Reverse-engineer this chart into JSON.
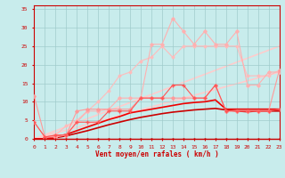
{
  "xlabel": "Vent moyen/en rafales ( km/h )",
  "ylabel": "",
  "xlim": [
    0,
    23
  ],
  "ylim": [
    0,
    36
  ],
  "yticks": [
    0,
    5,
    10,
    15,
    20,
    25,
    30,
    35
  ],
  "xticks": [
    0,
    1,
    2,
    3,
    4,
    5,
    6,
    7,
    8,
    9,
    10,
    11,
    12,
    13,
    14,
    15,
    16,
    17,
    18,
    19,
    20,
    21,
    22,
    23
  ],
  "bg_color": "#c8ecec",
  "grid_color": "#a0cccc",
  "lines": [
    {
      "x": [
        0,
        1,
        2,
        3,
        4,
        5,
        6,
        7,
        8,
        9,
        10,
        11,
        12,
        13,
        14,
        15,
        16,
        17,
        18,
        19,
        20,
        21,
        22,
        23
      ],
      "y": [
        4.5,
        0.5,
        0.5,
        1,
        4.5,
        7.5,
        7.5,
        8,
        11,
        11,
        11,
        25.5,
        25.5,
        32.5,
        29,
        25.5,
        29,
        25.5,
        25.5,
        29,
        14.5,
        14.5,
        18,
        18
      ],
      "color": "#ffb0b0",
      "lw": 0.8,
      "marker": "D",
      "ms": 1.8,
      "zorder": 3
    },
    {
      "x": [
        0,
        1,
        2,
        3,
        4,
        5,
        6,
        7,
        8,
        9,
        10,
        11,
        12,
        13,
        14,
        15,
        16,
        17,
        18,
        19,
        20,
        21,
        22,
        23
      ],
      "y": [
        0,
        0,
        1,
        3.5,
        5,
        7.5,
        10,
        13,
        17,
        18,
        21,
        22,
        25,
        22,
        25,
        25,
        25,
        25,
        25,
        25,
        17,
        17,
        17,
        18.5
      ],
      "color": "#ffbbbb",
      "lw": 0.8,
      "marker": "D",
      "ms": 1.5,
      "zorder": 2
    },
    {
      "x": [
        0,
        1,
        2,
        3,
        4,
        5,
        6,
        7,
        8,
        9,
        10,
        11,
        12,
        13,
        14,
        15,
        16,
        17,
        18,
        19,
        20,
        21,
        22,
        23
      ],
      "y": [
        11.5,
        0.5,
        1,
        1,
        7.5,
        8,
        8,
        8,
        8,
        8,
        11,
        11,
        11,
        11,
        11,
        11,
        11,
        14.5,
        7.5,
        7.5,
        7.5,
        7.5,
        7.5,
        18.5
      ],
      "color": "#ff9999",
      "lw": 0.8,
      "marker": "D",
      "ms": 1.8,
      "zorder": 3
    },
    {
      "x": [
        0,
        1,
        2,
        3,
        4,
        5,
        6,
        7,
        8,
        9,
        10,
        11,
        12,
        13,
        14,
        15,
        16,
        17,
        18,
        19,
        20,
        21,
        22,
        23
      ],
      "y": [
        4.5,
        0.5,
        1,
        1,
        4.5,
        4.5,
        4.5,
        7.5,
        7.5,
        7.5,
        11,
        11,
        11,
        14.5,
        14.5,
        11,
        11,
        14.5,
        7.5,
        7.5,
        7.5,
        7.5,
        7.5,
        8
      ],
      "color": "#ff5555",
      "lw": 0.8,
      "marker": "+",
      "ms": 2.5,
      "zorder": 4
    },
    {
      "x": [
        0,
        23
      ],
      "y": [
        0,
        25
      ],
      "color": "#ffcccc",
      "lw": 1.2,
      "marker": null,
      "ms": 0,
      "zorder": 1
    },
    {
      "x": [
        0,
        23
      ],
      "y": [
        0,
        18
      ],
      "color": "#ffcccc",
      "lw": 1.2,
      "marker": null,
      "ms": 0,
      "zorder": 1
    },
    {
      "x": [
        0,
        1,
        2,
        3,
        4,
        5,
        6,
        7,
        8,
        9,
        10,
        11,
        12,
        13,
        14,
        15,
        16,
        17,
        18,
        19,
        20,
        21,
        22,
        23
      ],
      "y": [
        0,
        0,
        0.3,
        0.8,
        1.5,
        2.2,
        3.0,
        3.8,
        4.5,
        5.2,
        5.8,
        6.3,
        6.8,
        7.2,
        7.5,
        7.8,
        8.0,
        8.2,
        7.8,
        7.5,
        7.3,
        7.5,
        7.5,
        7.5
      ],
      "color": "#cc0000",
      "lw": 1.2,
      "marker": null,
      "ms": 0,
      "zorder": 2
    },
    {
      "x": [
        0,
        1,
        2,
        3,
        4,
        5,
        6,
        7,
        8,
        9,
        10,
        11,
        12,
        13,
        14,
        15,
        16,
        17,
        18,
        19,
        20,
        21,
        22,
        23
      ],
      "y": [
        0,
        0,
        0.5,
        1.2,
        2.2,
        3.2,
        4.2,
        5.2,
        6.0,
        7.0,
        7.5,
        8.0,
        8.5,
        9.0,
        9.5,
        9.8,
        10.0,
        10.5,
        8.0,
        8.0,
        8.0,
        8.0,
        8.0,
        8.0
      ],
      "color": "#ee0000",
      "lw": 1.2,
      "marker": null,
      "ms": 0,
      "zorder": 2
    },
    {
      "x": [
        0,
        1,
        2,
        3,
        4,
        5,
        6,
        7,
        8,
        9,
        10,
        11,
        12,
        13,
        14,
        15,
        16,
        17,
        18,
        19,
        20,
        21,
        22,
        23
      ],
      "y": [
        0,
        0,
        0,
        0,
        0,
        0,
        0,
        0,
        0,
        0,
        0,
        0,
        0,
        0,
        0,
        0,
        0,
        0,
        0,
        0,
        0,
        0,
        0,
        0
      ],
      "color": "#cc0000",
      "lw": 0.8,
      "marker": ".",
      "ms": 1.5,
      "zorder": 4
    }
  ],
  "axis_color": "#cc0000",
  "tick_fontsize": 4.5,
  "xlabel_fontsize": 5.5
}
